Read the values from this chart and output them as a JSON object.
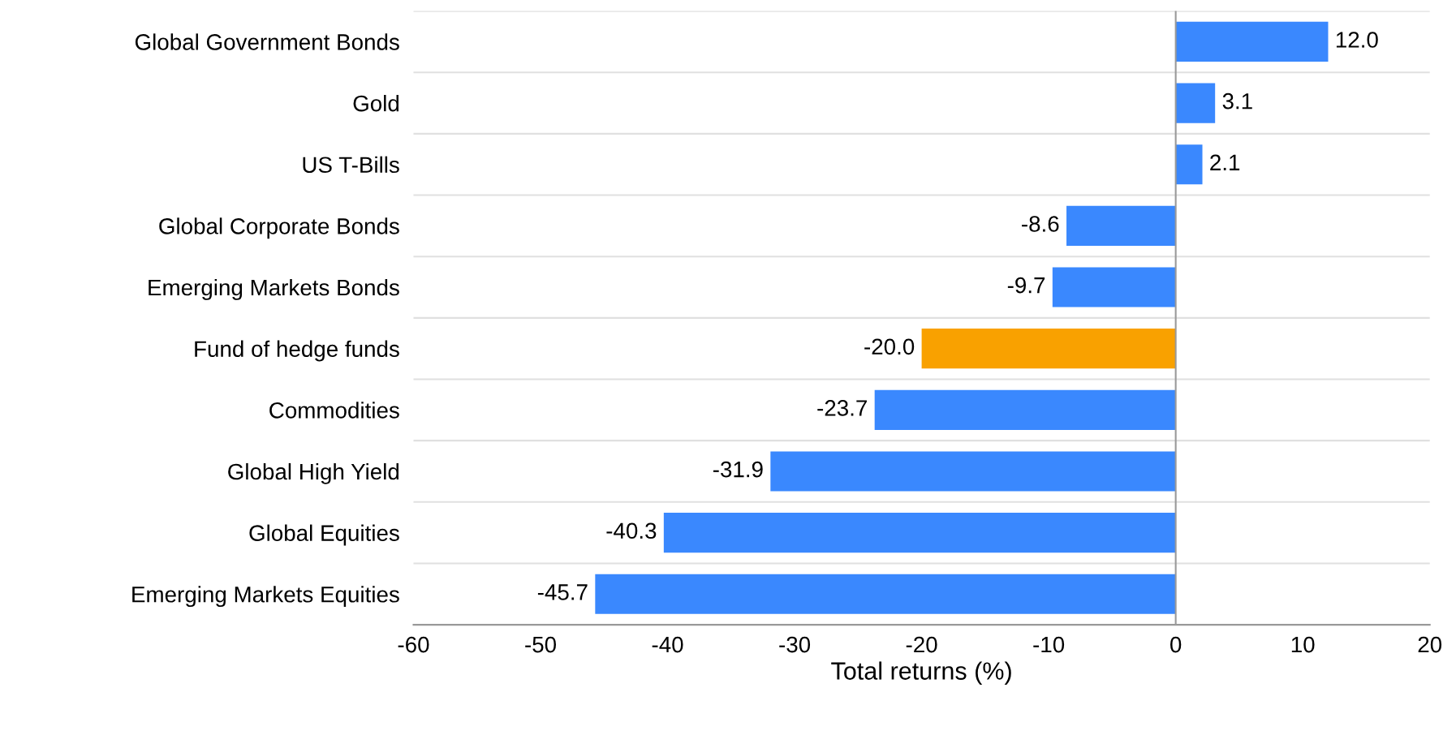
{
  "chart_data": {
    "type": "bar",
    "orientation": "horizontal",
    "xlabel": "Total returns (%)",
    "categories": [
      "Global Government Bonds",
      "Gold",
      "US T-Bills",
      "Global Corporate Bonds",
      "Emerging Markets Bonds",
      "Fund of hedge funds",
      "Commodities",
      "Global High Yield",
      "Global Equities",
      "Emerging Markets Equities"
    ],
    "values": [
      12.0,
      3.1,
      2.1,
      -8.6,
      -9.7,
      -20.0,
      -23.7,
      -31.9,
      -40.3,
      -45.7
    ],
    "value_labels": [
      "12.0",
      "3.1",
      "2.1",
      "-8.6",
      "-9.7",
      "-20.0",
      "-23.7",
      "-31.9",
      "-40.3",
      "-45.7"
    ],
    "colors": [
      "#3a88fe",
      "#3a88fe",
      "#3a88fe",
      "#3a88fe",
      "#3a88fe",
      "#f9a100",
      "#3a88fe",
      "#3a88fe",
      "#3a88fe",
      "#3a88fe"
    ],
    "xlim": [
      -60,
      20
    ],
    "xticks": [
      -60,
      -50,
      -40,
      -30,
      -20,
      -10,
      0,
      10,
      20
    ],
    "ref_lines": [
      {
        "axis": "x",
        "value": 0,
        "color": "#999999"
      }
    ],
    "grid": "y",
    "legend": false
  }
}
